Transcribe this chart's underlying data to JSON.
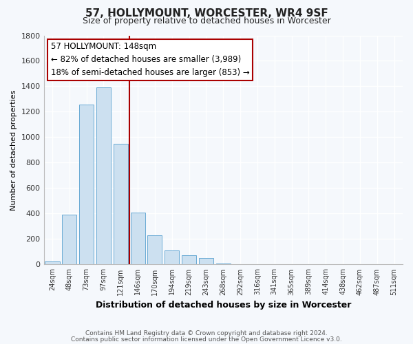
{
  "title": "57, HOLLYMOUNT, WORCESTER, WR4 9SF",
  "subtitle": "Size of property relative to detached houses in Worcester",
  "xlabel": "Distribution of detached houses by size in Worcester",
  "ylabel": "Number of detached properties",
  "categories": [
    "24sqm",
    "48sqm",
    "73sqm",
    "97sqm",
    "121sqm",
    "146sqm",
    "170sqm",
    "194sqm",
    "219sqm",
    "243sqm",
    "268sqm",
    "292sqm",
    "316sqm",
    "341sqm",
    "365sqm",
    "389sqm",
    "414sqm",
    "438sqm",
    "462sqm",
    "487sqm",
    "511sqm"
  ],
  "values": [
    25,
    390,
    1255,
    1390,
    950,
    410,
    230,
    110,
    70,
    50,
    10,
    5,
    3,
    2,
    2,
    2,
    2,
    2,
    0,
    0,
    0
  ],
  "bar_color": "#cce0f0",
  "bar_edge_color": "#6aaad4",
  "highlight_index": 5,
  "highlight_line_color": "#aa0000",
  "annotation_title": "57 HOLLYMOUNT: 148sqm",
  "annotation_line1": "← 82% of detached houses are smaller (3,989)",
  "annotation_line2": "18% of semi-detached houses are larger (853) →",
  "annotation_box_facecolor": "#ffffff",
  "annotation_box_edgecolor": "#aa0000",
  "ylim": [
    0,
    1800
  ],
  "yticks": [
    0,
    200,
    400,
    600,
    800,
    1000,
    1200,
    1400,
    1600,
    1800
  ],
  "footnote1": "Contains HM Land Registry data © Crown copyright and database right 2024.",
  "footnote2": "Contains public sector information licensed under the Open Government Licence v3.0.",
  "fig_facecolor": "#f5f8fc",
  "plot_facecolor": "#f5f8fc",
  "grid_color": "#ffffff"
}
